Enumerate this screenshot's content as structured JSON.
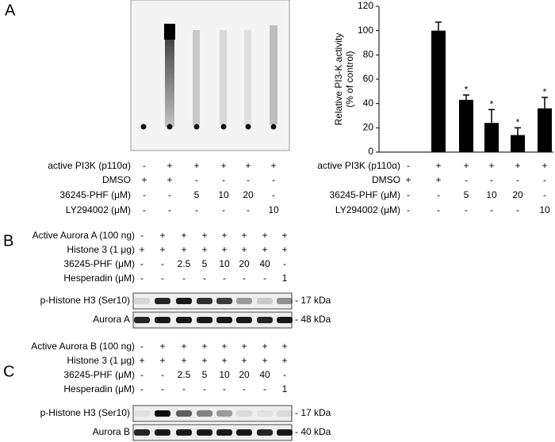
{
  "panel_a": {
    "label": "A",
    "conditions": [
      {
        "label": "active PI3K (p110α)",
        "cells": [
          "-",
          "+",
          "+",
          "+",
          "+",
          "+"
        ]
      },
      {
        "label": "DMSO",
        "cells": [
          "+",
          "+",
          "-",
          "-",
          "-",
          "-"
        ]
      },
      {
        "label": "36245-PHF (μM)",
        "cells": [
          "-",
          "-",
          "5",
          "10",
          "20",
          "-"
        ]
      },
      {
        "label": "LY294002 (μM)",
        "cells": [
          "-",
          "-",
          "-",
          "-",
          "-",
          "10"
        ]
      }
    ]
  },
  "chart_data": {
    "type": "bar",
    "y_label": [
      "Relative PI3-K activity",
      "(% of control)"
    ],
    "values": [
      0,
      100,
      43,
      24,
      14,
      36
    ],
    "errors": [
      null,
      7,
      4,
      11,
      6,
      9
    ],
    "significance": [
      null,
      null,
      "*",
      "*",
      "*",
      "*"
    ],
    "color": "#000000",
    "ylim": [
      0,
      120
    ],
    "yticks": [
      0,
      20,
      40,
      60,
      80,
      100,
      120
    ]
  },
  "panel_b": {
    "label": "B",
    "conditions": [
      {
        "label": "Active Aurora A (100 ng)",
        "cells": [
          "-",
          "+",
          "+",
          "+",
          "+",
          "+",
          "+",
          "+"
        ]
      },
      {
        "label": "Histone 3 (1 μg)",
        "cells": [
          "+",
          "+",
          "+",
          "+",
          "+",
          "+",
          "+",
          "+"
        ]
      },
      {
        "label": "36245-PHF (μM)",
        "cells": [
          "-",
          "-",
          "2.5",
          "5",
          "10",
          "20",
          "40",
          "-"
        ]
      },
      {
        "label": "Hesperadin (μM)",
        "cells": [
          "-",
          "-",
          "-",
          "-",
          "-",
          "-",
          "-",
          "1"
        ]
      }
    ],
    "blots": [
      {
        "label": "p-Histone H3 (Ser10)",
        "size": "- 17 kDa"
      },
      {
        "label": "Aurora A",
        "size": "- 48 kDa"
      }
    ]
  },
  "panel_c": {
    "label": "C",
    "conditions": [
      {
        "label": "Active Aurora B (100 ng)",
        "cells": [
          "-",
          "+",
          "+",
          "+",
          "+",
          "+",
          "+",
          "+"
        ]
      },
      {
        "label": "Histone 3 (1 μg)",
        "cells": [
          "+",
          "+",
          "+",
          "+",
          "+",
          "+",
          "+",
          "+"
        ]
      },
      {
        "label": "36245-PHF (μM)",
        "cells": [
          "-",
          "-",
          "2.5",
          "5",
          "10",
          "20",
          "40",
          "-"
        ]
      },
      {
        "label": "Hesperadin (μM)",
        "cells": [
          "-",
          "-",
          "-",
          "-",
          "-",
          "-",
          "-",
          "1"
        ]
      }
    ],
    "blots": [
      {
        "label": "p-Histone H3 (Ser10)",
        "size": "- 17 kDa"
      },
      {
        "label": "Aurora B",
        "size": "- 40 kDa"
      }
    ]
  }
}
